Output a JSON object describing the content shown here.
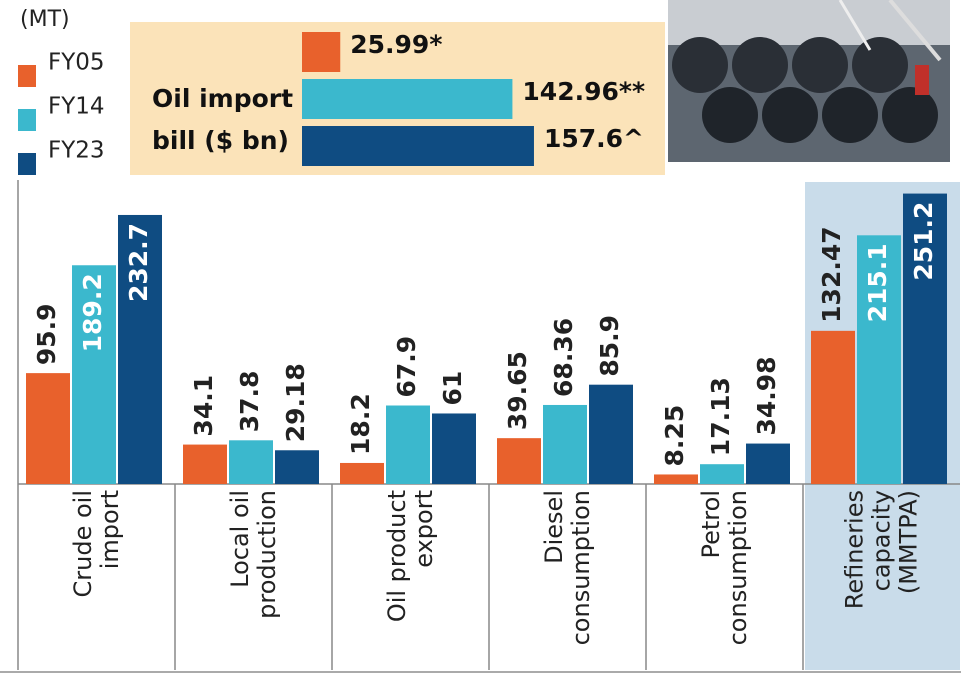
{
  "chart_data": [
    {
      "type": "bar",
      "unit": "(MT)",
      "categories": [
        "Crude oil import",
        "Local oil production",
        "Oil product export",
        "Diesel consumption",
        "Petrol consumption",
        "Refineries capacity (MMTPA)"
      ],
      "series": [
        {
          "name": "FY05",
          "color": "#e8612c",
          "values": [
            95.9,
            34.1,
            18.2,
            39.65,
            8.25,
            132.47
          ]
        },
        {
          "name": "FY14",
          "color": "#3bb8cd",
          "values": [
            189.2,
            37.8,
            67.9,
            68.36,
            17.13,
            215.1
          ]
        },
        {
          "name": "FY23",
          "color": "#0f4c82",
          "values": [
            232.7,
            29.18,
            61,
            85.9,
            34.98,
            251.2
          ]
        }
      ],
      "ylim": [
        0,
        260
      ]
    },
    {
      "type": "hbar",
      "title": "Oil import bill ($ bn)",
      "values": [
        25.99,
        142.96,
        157.6
      ],
      "value_labels": [
        "25.99*",
        "142.96**",
        "157.6^"
      ],
      "colors": [
        "#e8612c",
        "#3bb8cd",
        "#0f4c82"
      ],
      "xlim": [
        0,
        160
      ]
    }
  ]
}
